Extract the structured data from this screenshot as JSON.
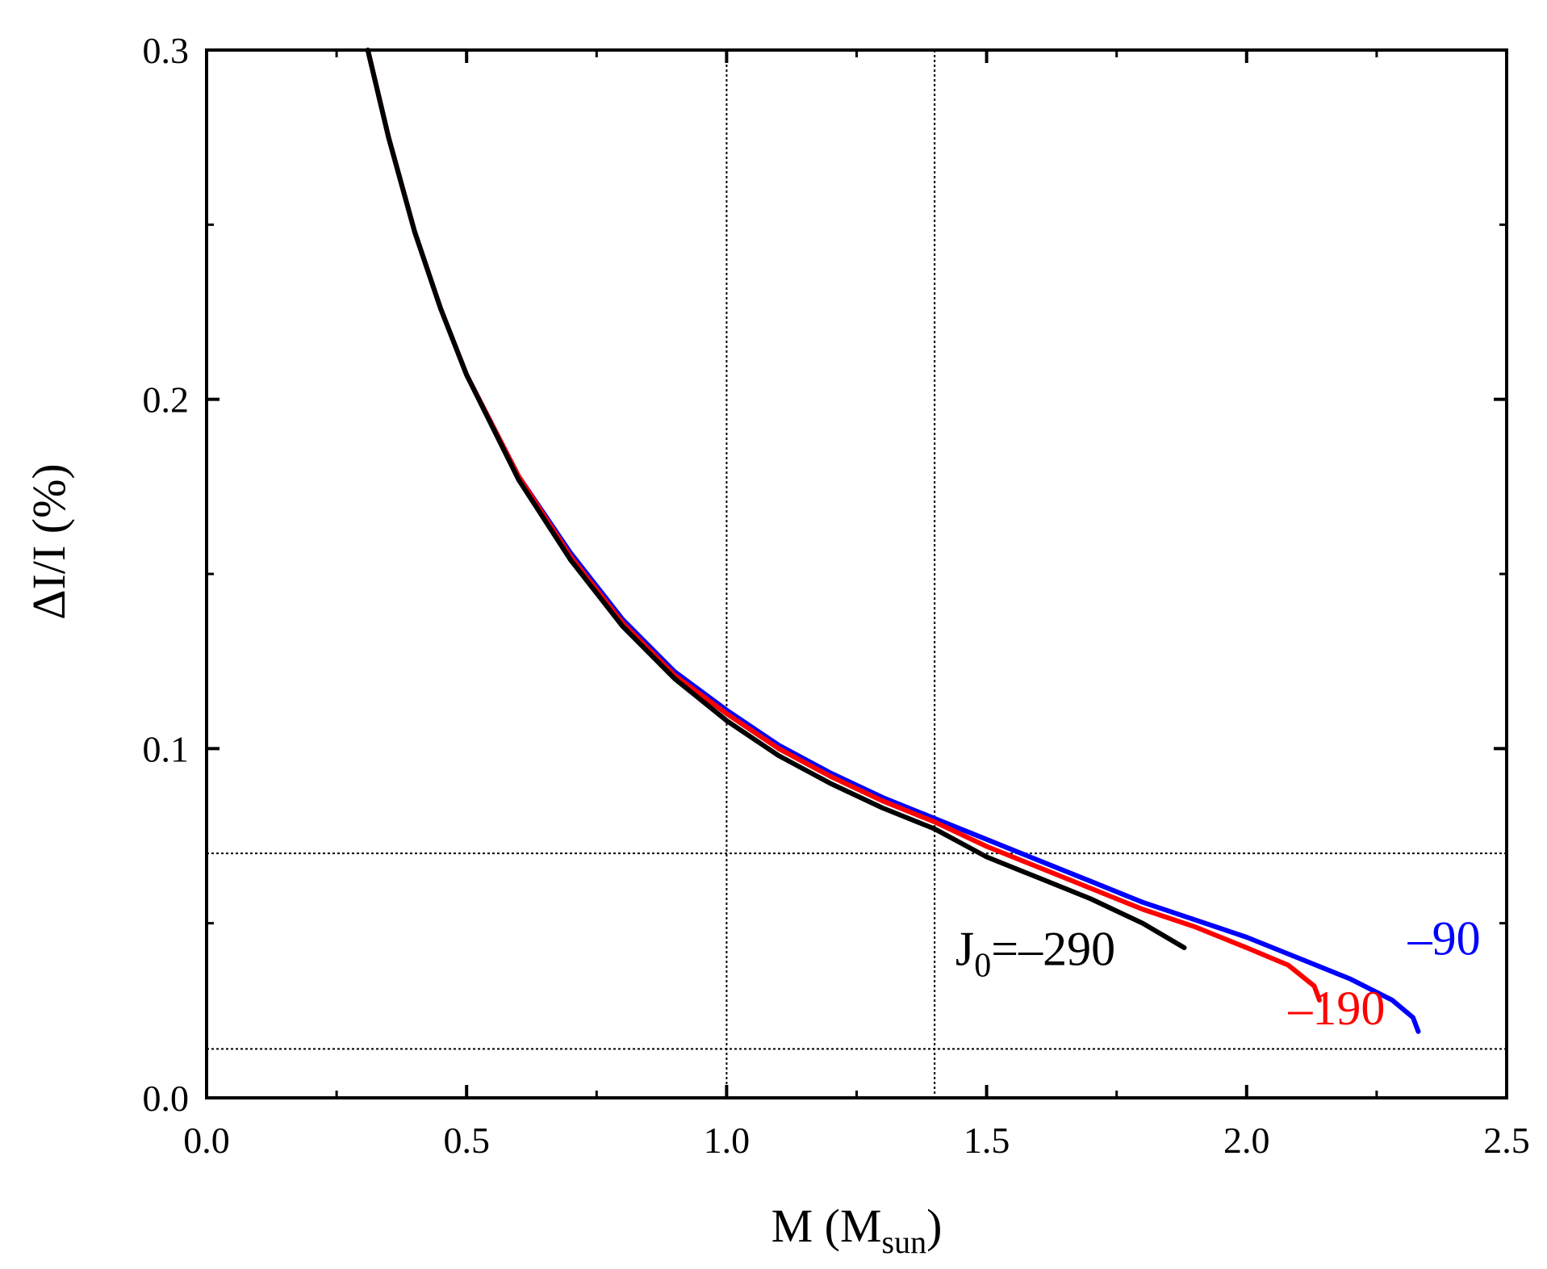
{
  "chart_data": {
    "type": "line",
    "xlabel": "M (M",
    "xlabel_sub": "sun",
    "xlabel_end": ")",
    "ylabel": "ΔI/I (%)",
    "xlim": [
      0.0,
      2.5
    ],
    "ylim": [
      0.0,
      0.3
    ],
    "xticks": [
      0.0,
      0.5,
      1.0,
      1.5,
      2.0,
      2.5
    ],
    "xtick_labels": [
      "0.0",
      "0.5",
      "1.0",
      "1.5",
      "2.0",
      "2.5"
    ],
    "yticks": [
      0.0,
      0.1,
      0.2,
      0.3
    ],
    "ytick_labels": [
      "0.0",
      "0.1",
      "0.2",
      "0.3"
    ],
    "x_minor_step": 0.25,
    "y_minor_step": 0.05,
    "reference_lines": {
      "vertical": [
        1.0,
        1.4
      ],
      "horizontal": [
        0.014,
        0.07
      ]
    },
    "series": [
      {
        "name": "J0=-290",
        "label_main": "J",
        "label_sub": "0",
        "label_rest": "=–290",
        "label_anchor": [
          1.44,
          0.038
        ],
        "color": "#000000",
        "x": [
          0.31,
          0.35,
          0.4,
          0.45,
          0.5,
          0.6,
          0.7,
          0.8,
          0.9,
          1.0,
          1.1,
          1.2,
          1.3,
          1.4,
          1.5,
          1.6,
          1.7,
          1.8,
          1.88
        ],
        "y": [
          0.3,
          0.275,
          0.248,
          0.226,
          0.207,
          0.177,
          0.154,
          0.135,
          0.12,
          0.108,
          0.098,
          0.09,
          0.083,
          0.077,
          0.069,
          0.063,
          0.057,
          0.05,
          0.043
        ]
      },
      {
        "name": "-190",
        "label": "–190",
        "label_anchor": [
          2.08,
          0.021
        ],
        "color": "#ff0000",
        "x": [
          0.31,
          0.35,
          0.4,
          0.45,
          0.5,
          0.6,
          0.7,
          0.8,
          0.9,
          1.0,
          1.1,
          1.2,
          1.3,
          1.4,
          1.5,
          1.6,
          1.7,
          1.8,
          1.9,
          2.0,
          2.08,
          2.13,
          2.14
        ],
        "y": [
          0.3,
          0.275,
          0.248,
          0.226,
          0.207,
          0.178,
          0.155,
          0.136,
          0.121,
          0.11,
          0.1,
          0.092,
          0.085,
          0.079,
          0.072,
          0.066,
          0.06,
          0.054,
          0.049,
          0.043,
          0.038,
          0.032,
          0.028
        ]
      },
      {
        "name": "-90",
        "label": "–90",
        "label_anchor": [
          2.31,
          0.041
        ],
        "color": "#0000ff",
        "x": [
          0.31,
          0.35,
          0.4,
          0.45,
          0.5,
          0.6,
          0.7,
          0.8,
          0.9,
          1.0,
          1.1,
          1.2,
          1.3,
          1.4,
          1.5,
          1.6,
          1.7,
          1.8,
          1.9,
          2.0,
          2.1,
          2.2,
          2.28,
          2.32,
          2.33
        ],
        "y": [
          0.3,
          0.275,
          0.248,
          0.226,
          0.207,
          0.178,
          0.156,
          0.137,
          0.122,
          0.111,
          0.101,
          0.093,
          0.086,
          0.08,
          0.074,
          0.068,
          0.062,
          0.056,
          0.051,
          0.046,
          0.04,
          0.034,
          0.028,
          0.023,
          0.019
        ]
      }
    ]
  }
}
